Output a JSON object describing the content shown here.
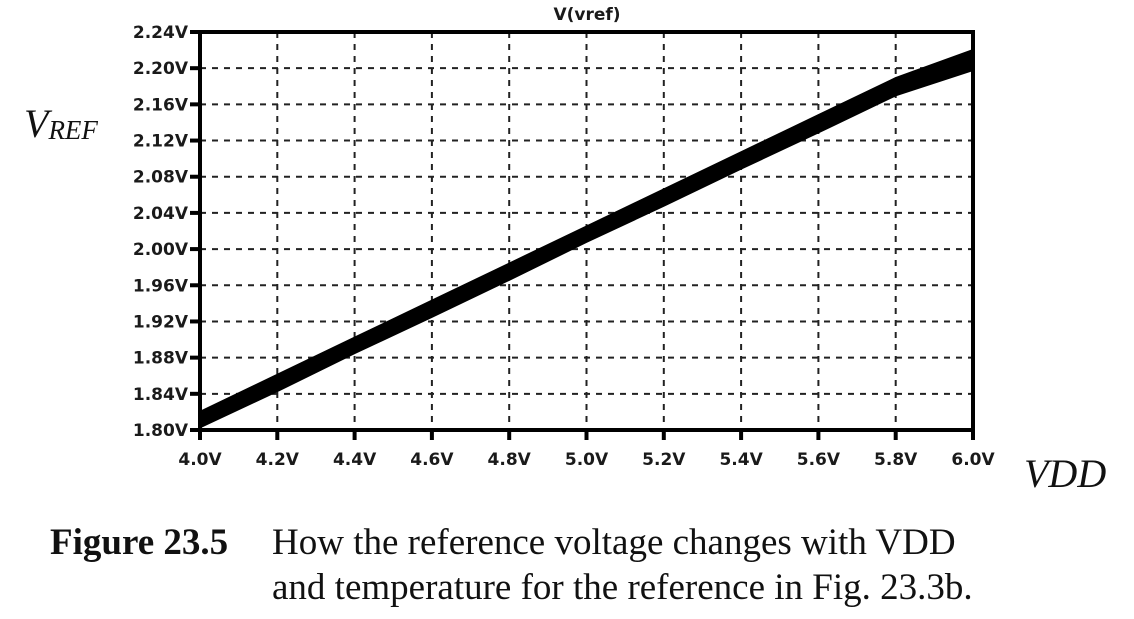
{
  "chart_data": {
    "type": "line",
    "title": "V(vref)",
    "xlabel": "VDD",
    "ylabel": "VREF",
    "ylabel_main": "V",
    "ylabel_sub": "REF",
    "xlim": [
      4.0,
      6.0
    ],
    "ylim": [
      1.8,
      2.24
    ],
    "grid": true,
    "grid_style": "dashed",
    "x_ticks": [
      "4.0V",
      "4.2V",
      "4.4V",
      "4.6V",
      "4.8V",
      "5.0V",
      "5.2V",
      "5.4V",
      "5.6V",
      "5.8V",
      "6.0V"
    ],
    "y_ticks": [
      "2.24V",
      "2.20V",
      "2.16V",
      "2.12V",
      "2.08V",
      "2.04V",
      "2.00V",
      "1.96V",
      "1.92V",
      "1.88V",
      "1.84V",
      "1.80V"
    ],
    "series": [
      {
        "name": "V(vref) across temperature (band)",
        "x": [
          4.0,
          4.2,
          4.4,
          4.6,
          4.8,
          5.0,
          5.2,
          5.4,
          5.6,
          5.8,
          6.0
        ],
        "upper": [
          1.82,
          1.861,
          1.902,
          1.943,
          1.984,
          2.025,
          2.066,
          2.107,
          2.148,
          2.189,
          2.22
        ],
        "lower": [
          1.803,
          1.843,
          1.885,
          1.925,
          1.966,
          2.008,
          2.048,
          2.089,
          2.129,
          2.17,
          2.198
        ],
        "values": [
          1.811,
          1.852,
          1.893,
          1.934,
          1.975,
          2.016,
          2.057,
          2.098,
          2.139,
          2.18,
          2.21
        ]
      }
    ],
    "legend": null
  },
  "caption": {
    "figure_number": "Figure 23.5",
    "line1": "How the reference voltage changes with VDD",
    "line2": "and temperature for the reference in Fig. 23.3b."
  }
}
